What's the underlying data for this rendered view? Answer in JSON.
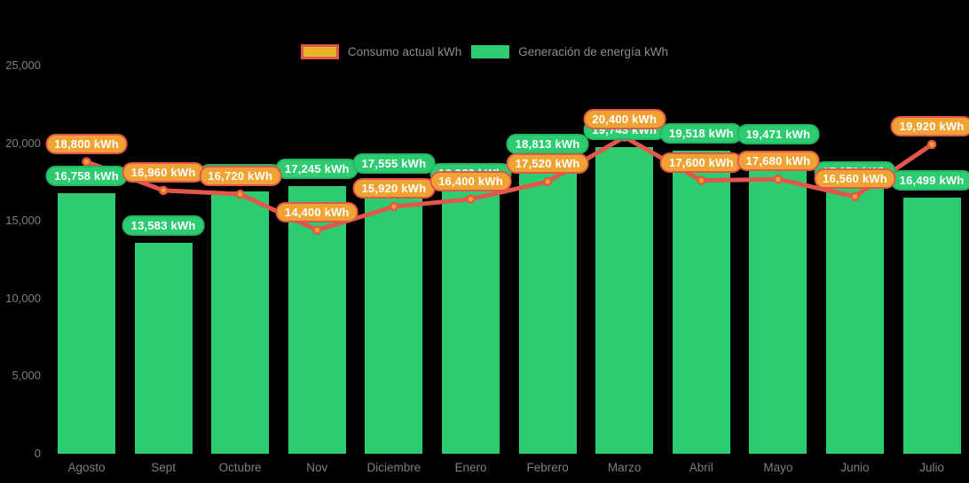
{
  "legend": {
    "consumo_label": "Consumo actual kWh",
    "generacion_label": "Generación de energía kWh"
  },
  "colors": {
    "background": "#000000",
    "bar_fill": "#2ecc71",
    "bar_badge_border": "#26b465",
    "line": "#e2574c",
    "dot_fill": "#f3a326",
    "dot_ring": "#e2574c",
    "orange_badge_fill": "#f0a332",
    "orange_badge_border": "#e2574c",
    "legend_swatch_consumo_fill": "#eab226",
    "axis_text": "#7f7f7f",
    "badge_text": "#ffffff"
  },
  "chart_data": {
    "type": "bar",
    "subtype": "bar-with-line-overlay",
    "title": "",
    "xlabel": "",
    "ylabel": "",
    "categories": [
      "Agosto",
      "Sept",
      "Octubre",
      "Nov",
      "Diciembre",
      "Enero",
      "Febrero",
      "Marzo",
      "Abril",
      "Mayo",
      "Junio",
      "Julio"
    ],
    "series": [
      {
        "name": "Consumo actual kWh",
        "type": "line",
        "values": [
          18800,
          16960,
          16720,
          14400,
          15920,
          16400,
          17520,
          20400,
          17600,
          17680,
          16560,
          19920
        ],
        "labels": [
          "18,800 kWh",
          "16,960 kWh",
          "16,720 kWh",
          "14,400 kWh",
          "15,920 kWh",
          "16,400 kWh",
          "17,520 kWh",
          "20,400 kWh",
          "17,600 kWh",
          "17,680 kWh",
          "16,560 kWh",
          "19,920 kWh"
        ]
      },
      {
        "name": "Generación de energía kWh",
        "type": "bar",
        "values": [
          16758,
          13583,
          16900,
          17245,
          17555,
          16929,
          18813,
          19743,
          19518,
          19471,
          17073,
          16499
        ],
        "labels": [
          "16,758 kWh",
          "13,583 kWh",
          "16,900 kWh",
          "17,245 kWh",
          "17,555 kWh",
          "16,929 kWh",
          "18,813 kWh",
          "19,743 kWh",
          "19,518 kWh",
          "19,471 kWh",
          "17,073 kWh",
          "16,499 kWh"
        ]
      }
    ],
    "ylim": [
      0,
      25000
    ],
    "yticks": [
      0,
      5000,
      10000,
      15000,
      20000,
      25000
    ],
    "ytick_labels": [
      "0",
      "5,000",
      "10,000",
      "15,000",
      "20,000",
      "25,000"
    ],
    "grid": false,
    "legend_position": "top-center"
  }
}
